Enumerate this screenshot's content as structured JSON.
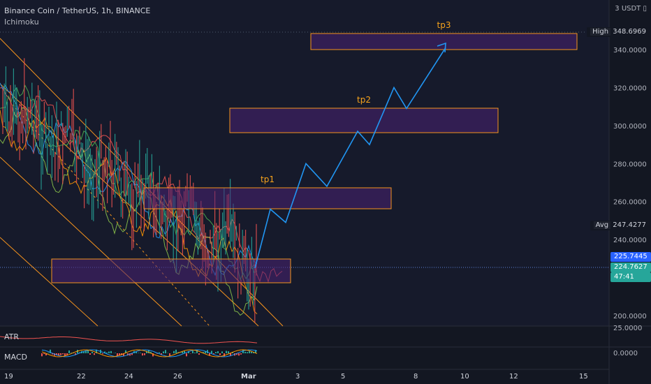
{
  "header": {
    "symbol_line": "Binance Coin / TetherUS, 1h, BINANCE",
    "indicator": "Ichimoku"
  },
  "scale": {
    "unit": "USDT",
    "unit_prefix": "3",
    "price_ticks": [
      "340.0000",
      "320.0000",
      "300.0000",
      "280.0000",
      "260.0000",
      "240.0000",
      "200.0000"
    ],
    "atr_tick": "25.0000",
    "macd_tick": "0.0000"
  },
  "tags": {
    "high": {
      "label": "High",
      "value": "348.6969"
    },
    "avg": {
      "label": "Avg",
      "value": "247.4277"
    },
    "price1": "225.7445",
    "price2": "224.7627",
    "countdown": "47:41"
  },
  "panes": {
    "atr": "ATR",
    "macd": "MACD"
  },
  "time_axis": [
    "19",
    "22",
    "24",
    "26",
    "Mar",
    "3",
    "5",
    "8",
    "10",
    "12",
    "15"
  ],
  "targets": [
    "tp1",
    "tp2",
    "tp3"
  ],
  "colors": {
    "background": "#131722",
    "zone_fill": "#4a2373",
    "zone_border": "#f7941d",
    "forecast": "#2196f3",
    "channel": "#f7941d",
    "text": "#b2b5be",
    "tp_text": "#f7a31c"
  },
  "chart_data": {
    "type": "line",
    "price_range": [
      200,
      350
    ],
    "zones": [
      {
        "label": "",
        "low": 216,
        "high": 229
      },
      {
        "label": "tp1",
        "low": 256,
        "high": 267
      },
      {
        "label": "tp2",
        "low": 297,
        "high": 309
      },
      {
        "label": "tp3",
        "low": 340,
        "high": 348.5
      }
    ],
    "forecast_path": [
      225,
      256,
      249,
      280,
      268,
      297,
      290,
      320,
      309,
      341
    ]
  }
}
